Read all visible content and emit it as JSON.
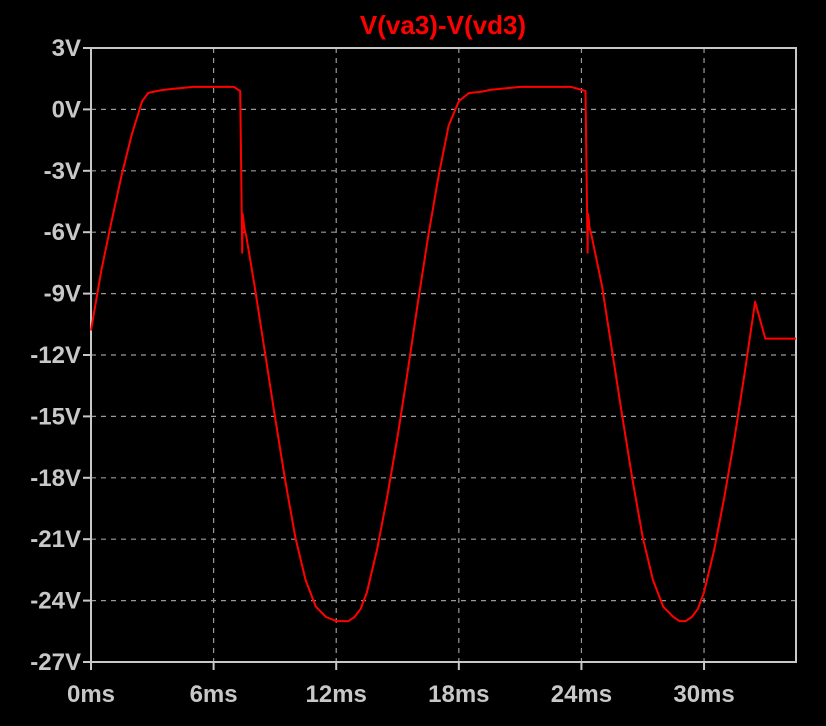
{
  "chart_data": {
    "type": "line",
    "title": "V(va3)-V(vd3)",
    "xlabel": "",
    "ylabel": "",
    "xlim": [
      0,
      34.5
    ],
    "ylim": [
      -27,
      3
    ],
    "x_ticks": [
      0,
      6,
      12,
      18,
      24,
      30
    ],
    "x_tick_labels": [
      "0ms",
      "6ms",
      "12ms",
      "18ms",
      "24ms",
      "30ms"
    ],
    "y_ticks": [
      3,
      0,
      -3,
      -6,
      -9,
      -12,
      -15,
      -18,
      -21,
      -24,
      -27
    ],
    "y_tick_labels": [
      "3V",
      "0V",
      "-3V",
      "-6V",
      "-9V",
      "-12V",
      "-15V",
      "-18V",
      "-21V",
      "-24V",
      "-27V"
    ],
    "grid": true,
    "colors": {
      "background": "#000000",
      "axes": "#c8c8c8",
      "grid": "#9a9a9a",
      "trace": "#ff0000",
      "title": "#ff0000"
    },
    "series": [
      {
        "name": "V(va3)-V(vd3)",
        "x": [
          0.0,
          0.5,
          1.0,
          1.5,
          2.0,
          2.5,
          2.8,
          3.0,
          3.5,
          4.0,
          4.5,
          5.0,
          5.5,
          6.0,
          6.5,
          7.0,
          7.3,
          7.4,
          7.42,
          7.45,
          7.5,
          7.6,
          8.0,
          8.5,
          9.0,
          9.5,
          10.0,
          10.5,
          11.0,
          11.5,
          12.0,
          12.3,
          12.6,
          12.9,
          13.2,
          13.5,
          14.0,
          14.5,
          15.0,
          15.5,
          16.0,
          16.5,
          17.0,
          17.5,
          18.0,
          18.5,
          19.0,
          19.3,
          19.5,
          20.0,
          20.5,
          21.0,
          21.5,
          22.0,
          22.5,
          23.0,
          23.5,
          24.2,
          24.3,
          24.32,
          24.35,
          24.4,
          24.5,
          25.0,
          25.5,
          26.0,
          26.5,
          27.0,
          27.5,
          28.0,
          28.5,
          28.8,
          29.1,
          29.4,
          29.7,
          30.0,
          30.5,
          31.0,
          31.5,
          32.0,
          32.5,
          33.0,
          33.5,
          34.0,
          34.5
        ],
        "y": [
          -10.8,
          -7.9,
          -5.5,
          -3.2,
          -1.2,
          0.4,
          0.8,
          0.85,
          0.95,
          1.0,
          1.05,
          1.1,
          1.1,
          1.1,
          1.1,
          1.1,
          0.9,
          -7.0,
          -5.1,
          -5.3,
          -5.8,
          -6.2,
          -8.6,
          -11.8,
          -15.0,
          -18.1,
          -20.9,
          -23.0,
          -24.3,
          -24.8,
          -25.0,
          -25.0,
          -25.0,
          -24.8,
          -24.4,
          -23.6,
          -21.5,
          -18.9,
          -16.0,
          -12.8,
          -9.4,
          -6.2,
          -3.3,
          -0.8,
          0.4,
          0.8,
          0.85,
          0.9,
          0.95,
          1.0,
          1.05,
          1.1,
          1.1,
          1.1,
          1.1,
          1.1,
          1.1,
          0.9,
          -7.0,
          -5.1,
          -5.3,
          -5.8,
          -6.2,
          -8.6,
          -11.8,
          -15.0,
          -18.1,
          -20.9,
          -23.0,
          -24.3,
          -24.8,
          -25.0,
          -25.0,
          -24.8,
          -24.4,
          -23.6,
          -21.5,
          -18.9,
          -16.0,
          -12.8,
          -9.4,
          -11.2,
          -11.2,
          -11.2,
          -11.2
        ]
      }
    ]
  }
}
